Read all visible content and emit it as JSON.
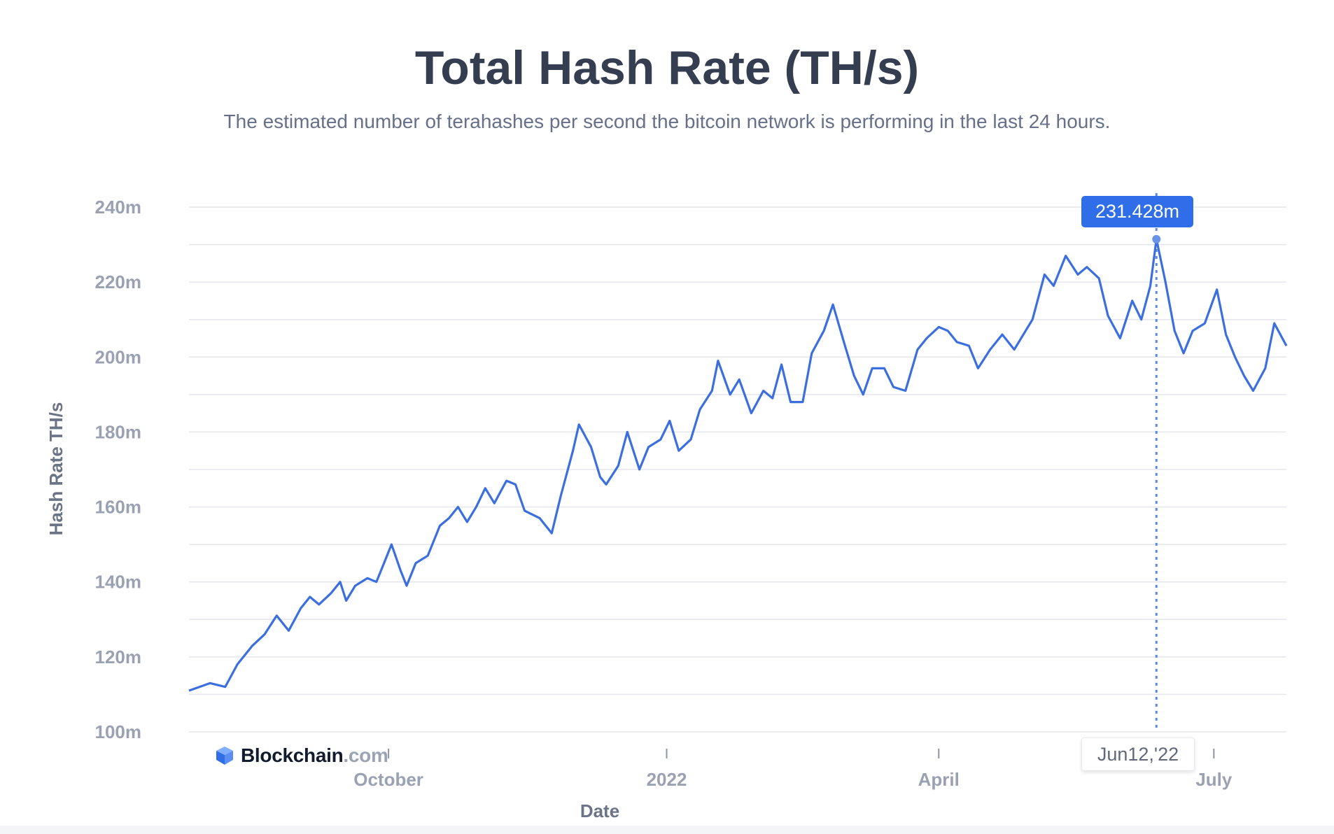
{
  "title": "Total Hash Rate (TH/s)",
  "subtitle": "The estimated number of terahashes per second the bitcoin network is performing in the last 24 hours.",
  "brand": {
    "name": "Blockchain",
    "suffix": ".com"
  },
  "tooltip": {
    "value": "231.428m",
    "date": "Jun12,'22"
  },
  "colors": {
    "line": "#3b6fe0",
    "tooltip_bg": "#2f6ee8",
    "title": "#353d51"
  },
  "chart_data": {
    "type": "line",
    "title": "Total Hash Rate (TH/s)",
    "xlabel": "Date",
    "ylabel": "Hash Rate TH/s",
    "ylim": [
      100,
      240
    ],
    "yticks": [
      100,
      120,
      140,
      160,
      180,
      200,
      220,
      240
    ],
    "ytick_labels": [
      "100m",
      "120m",
      "140m",
      "160m",
      "180m",
      "200m",
      "220m",
      "240m"
    ],
    "xlim": [
      "2021-07-27",
      "2022-07-25"
    ],
    "xticks": [
      {
        "date": "2021-10-01",
        "label": "October"
      },
      {
        "date": "2022-01-01",
        "label": "2022"
      },
      {
        "date": "2022-04-01",
        "label": "April"
      },
      {
        "date": "2022-07-01",
        "label": "July"
      }
    ],
    "grid": true,
    "highlight": {
      "date": "2022-06-12",
      "value": 231.428
    },
    "series": [
      {
        "values": [
          [
            "2021-07-27",
            111
          ],
          [
            "2021-08-03",
            113
          ],
          [
            "2021-08-08",
            112
          ],
          [
            "2021-08-12",
            118
          ],
          [
            "2021-08-17",
            123
          ],
          [
            "2021-08-21",
            126
          ],
          [
            "2021-08-25",
            131
          ],
          [
            "2021-08-29",
            127
          ],
          [
            "2021-09-02",
            133
          ],
          [
            "2021-09-05",
            136
          ],
          [
            "2021-09-08",
            134
          ],
          [
            "2021-09-12",
            137
          ],
          [
            "2021-09-15",
            140
          ],
          [
            "2021-09-17",
            135
          ],
          [
            "2021-09-20",
            139
          ],
          [
            "2021-09-24",
            141
          ],
          [
            "2021-09-27",
            140
          ],
          [
            "2021-09-30",
            146
          ],
          [
            "2021-10-02",
            150
          ],
          [
            "2021-10-05",
            143
          ],
          [
            "2021-10-07",
            139
          ],
          [
            "2021-10-10",
            145
          ],
          [
            "2021-10-14",
            147
          ],
          [
            "2021-10-18",
            155
          ],
          [
            "2021-10-21",
            157
          ],
          [
            "2021-10-24",
            160
          ],
          [
            "2021-10-27",
            156
          ],
          [
            "2021-10-30",
            160
          ],
          [
            "2021-11-02",
            165
          ],
          [
            "2021-11-05",
            161
          ],
          [
            "2021-11-09",
            167
          ],
          [
            "2021-11-12",
            166
          ],
          [
            "2021-11-15",
            159
          ],
          [
            "2021-11-20",
            157
          ],
          [
            "2021-11-24",
            153
          ],
          [
            "2021-11-27",
            163
          ],
          [
            "2021-12-01",
            175
          ],
          [
            "2021-12-03",
            182
          ],
          [
            "2021-12-07",
            176
          ],
          [
            "2021-12-10",
            168
          ],
          [
            "2021-12-12",
            166
          ],
          [
            "2021-12-16",
            171
          ],
          [
            "2021-12-19",
            180
          ],
          [
            "2021-12-23",
            170
          ],
          [
            "2021-12-26",
            176
          ],
          [
            "2021-12-30",
            178
          ],
          [
            "2022-01-02",
            183
          ],
          [
            "2022-01-05",
            175
          ],
          [
            "2022-01-09",
            178
          ],
          [
            "2022-01-12",
            186
          ],
          [
            "2022-01-16",
            191
          ],
          [
            "2022-01-18",
            199
          ],
          [
            "2022-01-22",
            190
          ],
          [
            "2022-01-25",
            194
          ],
          [
            "2022-01-29",
            185
          ],
          [
            "2022-02-02",
            191
          ],
          [
            "2022-02-05",
            189
          ],
          [
            "2022-02-08",
            198
          ],
          [
            "2022-02-11",
            188
          ],
          [
            "2022-02-15",
            188
          ],
          [
            "2022-02-18",
            201
          ],
          [
            "2022-02-22",
            207
          ],
          [
            "2022-02-25",
            214
          ],
          [
            "2022-03-01",
            203
          ],
          [
            "2022-03-04",
            195
          ],
          [
            "2022-03-07",
            190
          ],
          [
            "2022-03-10",
            197
          ],
          [
            "2022-03-14",
            197
          ],
          [
            "2022-03-17",
            192
          ],
          [
            "2022-03-21",
            191
          ],
          [
            "2022-03-25",
            202
          ],
          [
            "2022-03-28",
            205
          ],
          [
            "2022-04-01",
            208
          ],
          [
            "2022-04-04",
            207
          ],
          [
            "2022-04-07",
            204
          ],
          [
            "2022-04-11",
            203
          ],
          [
            "2022-04-14",
            197
          ],
          [
            "2022-04-18",
            202
          ],
          [
            "2022-04-22",
            206
          ],
          [
            "2022-04-26",
            202
          ],
          [
            "2022-04-29",
            206
          ],
          [
            "2022-05-02",
            210
          ],
          [
            "2022-05-06",
            222
          ],
          [
            "2022-05-09",
            219
          ],
          [
            "2022-05-13",
            227
          ],
          [
            "2022-05-17",
            222
          ],
          [
            "2022-05-20",
            224
          ],
          [
            "2022-05-24",
            221
          ],
          [
            "2022-05-27",
            211
          ],
          [
            "2022-05-31",
            205
          ],
          [
            "2022-06-04",
            215
          ],
          [
            "2022-06-07",
            210
          ],
          [
            "2022-06-10",
            219
          ],
          [
            "2022-06-12",
            231.428
          ],
          [
            "2022-06-15",
            220
          ],
          [
            "2022-06-18",
            207
          ],
          [
            "2022-06-21",
            201
          ],
          [
            "2022-06-24",
            207
          ],
          [
            "2022-06-28",
            209
          ],
          [
            "2022-07-02",
            218
          ],
          [
            "2022-07-05",
            206
          ],
          [
            "2022-07-08",
            200
          ],
          [
            "2022-07-11",
            195
          ],
          [
            "2022-07-14",
            191
          ],
          [
            "2022-07-18",
            197
          ],
          [
            "2022-07-21",
            209
          ],
          [
            "2022-07-25",
            203
          ]
        ]
      }
    ]
  }
}
